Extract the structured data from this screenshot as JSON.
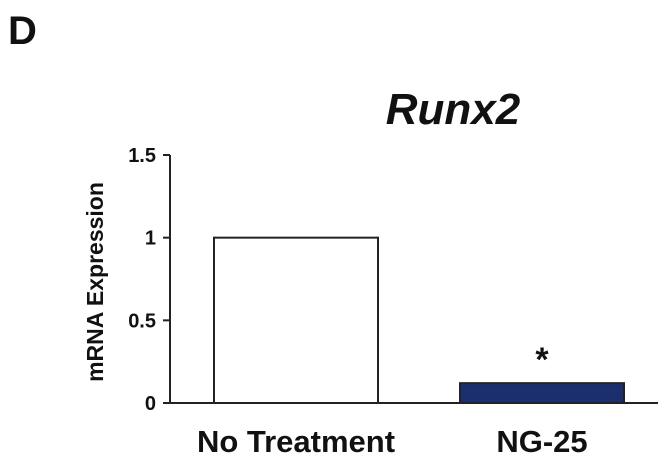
{
  "panel_label": "D",
  "chart_data": {
    "type": "bar",
    "title": "Runx2",
    "xlabel": "",
    "ylabel": "mRNA Expression",
    "categories": [
      "No Treatment",
      "NG-25"
    ],
    "values": [
      1.0,
      0.12
    ],
    "bar_colors": [
      "#ffffff",
      "#1b2f6e"
    ],
    "ylim": [
      0,
      1.5
    ],
    "yticks": [
      "0",
      "0.5",
      "1",
      "1.5"
    ],
    "annotations": [
      {
        "category": "NG-25",
        "text": "*"
      }
    ],
    "grid": false
  }
}
